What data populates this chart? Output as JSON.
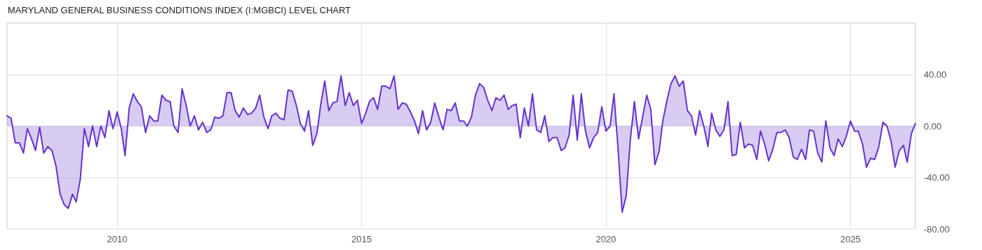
{
  "chart_data": {
    "type": "area",
    "title": "MARYLAND GENERAL BUSINESS CONDITIONS INDEX (I:MGBCI) LEVEL CHART",
    "x": [
      "2007-10",
      "2007-11",
      "2007-12",
      "2008-01",
      "2008-02",
      "2008-03",
      "2008-04",
      "2008-05",
      "2008-06",
      "2008-07",
      "2008-08",
      "2008-09",
      "2008-10",
      "2008-11",
      "2008-12",
      "2009-01",
      "2009-02",
      "2009-03",
      "2009-04",
      "2009-05",
      "2009-06",
      "2009-07",
      "2009-08",
      "2009-09",
      "2009-10",
      "2009-11",
      "2009-12",
      "2010-01",
      "2010-02",
      "2010-03",
      "2010-04",
      "2010-05",
      "2010-06",
      "2010-07",
      "2010-08",
      "2010-09",
      "2010-10",
      "2010-11",
      "2010-12",
      "2011-01",
      "2011-02",
      "2011-03",
      "2011-04",
      "2011-05",
      "2011-06",
      "2011-07",
      "2011-08",
      "2011-09",
      "2011-10",
      "2011-11",
      "2011-12",
      "2012-01",
      "2012-02",
      "2012-03",
      "2012-04",
      "2012-05",
      "2012-06",
      "2012-07",
      "2012-08",
      "2012-09",
      "2012-10",
      "2012-11",
      "2012-12",
      "2013-01",
      "2013-02",
      "2013-03",
      "2013-04",
      "2013-05",
      "2013-06",
      "2013-07",
      "2013-08",
      "2013-09",
      "2013-10",
      "2013-11",
      "2013-12",
      "2014-01",
      "2014-02",
      "2014-03",
      "2014-04",
      "2014-05",
      "2014-06",
      "2014-07",
      "2014-08",
      "2014-09",
      "2014-10",
      "2014-11",
      "2014-12",
      "2015-01",
      "2015-02",
      "2015-03",
      "2015-04",
      "2015-05",
      "2015-06",
      "2015-07",
      "2015-08",
      "2015-09",
      "2015-10",
      "2015-11",
      "2015-12",
      "2016-01",
      "2016-02",
      "2016-03",
      "2016-04",
      "2016-05",
      "2016-06",
      "2016-07",
      "2016-08",
      "2016-09",
      "2016-10",
      "2016-11",
      "2016-12",
      "2017-01",
      "2017-02",
      "2017-03",
      "2017-04",
      "2017-05",
      "2017-06",
      "2017-07",
      "2017-08",
      "2017-09",
      "2017-10",
      "2017-11",
      "2017-12",
      "2018-01",
      "2018-02",
      "2018-03",
      "2018-04",
      "2018-05",
      "2018-06",
      "2018-07",
      "2018-08",
      "2018-09",
      "2018-10",
      "2018-11",
      "2018-12",
      "2019-01",
      "2019-02",
      "2019-03",
      "2019-04",
      "2019-05",
      "2019-06",
      "2019-07",
      "2019-08",
      "2019-09",
      "2019-10",
      "2019-11",
      "2019-12",
      "2020-01",
      "2020-02",
      "2020-03",
      "2020-04",
      "2020-05",
      "2020-06",
      "2020-07",
      "2020-08",
      "2020-09",
      "2020-10",
      "2020-11",
      "2020-12",
      "2021-01",
      "2021-02",
      "2021-03",
      "2021-04",
      "2021-05",
      "2021-06",
      "2021-07",
      "2021-08",
      "2021-09",
      "2021-10",
      "2021-11",
      "2021-12",
      "2022-01",
      "2022-02",
      "2022-03",
      "2022-04",
      "2022-05",
      "2022-06",
      "2022-07",
      "2022-08",
      "2022-09",
      "2022-10",
      "2022-11",
      "2022-12",
      "2023-01",
      "2023-02",
      "2023-03",
      "2023-04",
      "2023-05",
      "2023-06",
      "2023-07",
      "2023-08",
      "2023-09",
      "2023-10",
      "2023-11",
      "2023-12",
      "2024-01",
      "2024-02",
      "2024-03",
      "2024-04",
      "2024-05",
      "2024-06",
      "2024-07",
      "2024-08",
      "2024-09",
      "2024-10",
      "2024-11",
      "2024-12",
      "2025-01",
      "2025-02",
      "2025-03",
      "2025-04",
      "2025-05",
      "2025-06",
      "2025-07",
      "2025-08",
      "2025-09",
      "2025-10",
      "2025-11",
      "2025-12",
      "2026-01",
      "2026-02",
      "2026-03",
      "2026-04",
      "2026-05"
    ],
    "series": [
      {
        "color": "#6633cc",
        "values": [
          8,
          6,
          -13,
          -13,
          -21,
          -2,
          -10,
          -19,
          -1,
          -21,
          -16,
          -19,
          -31,
          -53,
          -61,
          -64,
          -53,
          -59,
          -41,
          -2,
          -16,
          0,
          -16,
          0,
          -9,
          12,
          -2,
          11,
          -2,
          -23,
          14,
          25,
          19,
          15,
          -5,
          8,
          4,
          4,
          24,
          20,
          19,
          0,
          -5,
          29,
          16,
          0,
          8,
          -3,
          3,
          -5,
          -3,
          7,
          6,
          8,
          26,
          26,
          12,
          7,
          14,
          9,
          10,
          14,
          24,
          7,
          -2,
          8,
          10,
          6,
          5,
          28,
          27,
          16,
          2,
          -4,
          12,
          -15,
          -6,
          16,
          35,
          12,
          18,
          19,
          39,
          16,
          26,
          16,
          20,
          2,
          10,
          19,
          22,
          13,
          31,
          31,
          29,
          39,
          13,
          18,
          17,
          11,
          4,
          -6,
          12,
          -3,
          3,
          18,
          7,
          -3,
          13,
          12,
          18,
          4,
          4,
          0,
          7,
          24,
          33,
          30,
          20,
          12,
          22,
          20,
          24,
          13,
          16,
          17,
          -9,
          14,
          0,
          25,
          -3,
          -5,
          8,
          -12,
          -9,
          -9,
          -19,
          -17,
          -7,
          24,
          -11,
          25,
          -4,
          -17,
          -9,
          -5,
          15,
          -4,
          0,
          25,
          -18,
          -67,
          -54,
          -11,
          19,
          -10,
          7,
          24,
          13,
          -30,
          -20,
          4,
          20,
          33,
          39,
          31,
          35,
          12,
          8,
          -7,
          12,
          0,
          -16,
          10,
          -3,
          -8,
          -3,
          19,
          -23,
          -22,
          3,
          -17,
          -14,
          -15,
          -26,
          -4,
          -14,
          -27,
          -18,
          -5,
          -5,
          -3,
          -9,
          -24,
          -26,
          -18,
          -26,
          -3,
          -4,
          -21,
          -28,
          4,
          -17,
          -23,
          -10,
          -16,
          -8,
          4,
          -4,
          -4,
          -14,
          -32,
          -25,
          -26,
          -16,
          3,
          0,
          -12,
          -32,
          -19,
          -15,
          -28,
          -6,
          2
        ]
      }
    ],
    "xlim": [
      "2007-10",
      "2026-05"
    ],
    "xticks": [
      "2010",
      "2015",
      "2020",
      "2025"
    ],
    "ylim": [
      -80,
      80
    ],
    "yticks": [
      {
        "value": -80,
        "label": "-80.00"
      },
      {
        "value": -40,
        "label": "-40.00"
      },
      {
        "value": 0,
        "label": "0.00"
      },
      {
        "value": 40,
        "label": "40.00"
      }
    ],
    "grid": true,
    "marker": "none",
    "line_style": "solid"
  }
}
